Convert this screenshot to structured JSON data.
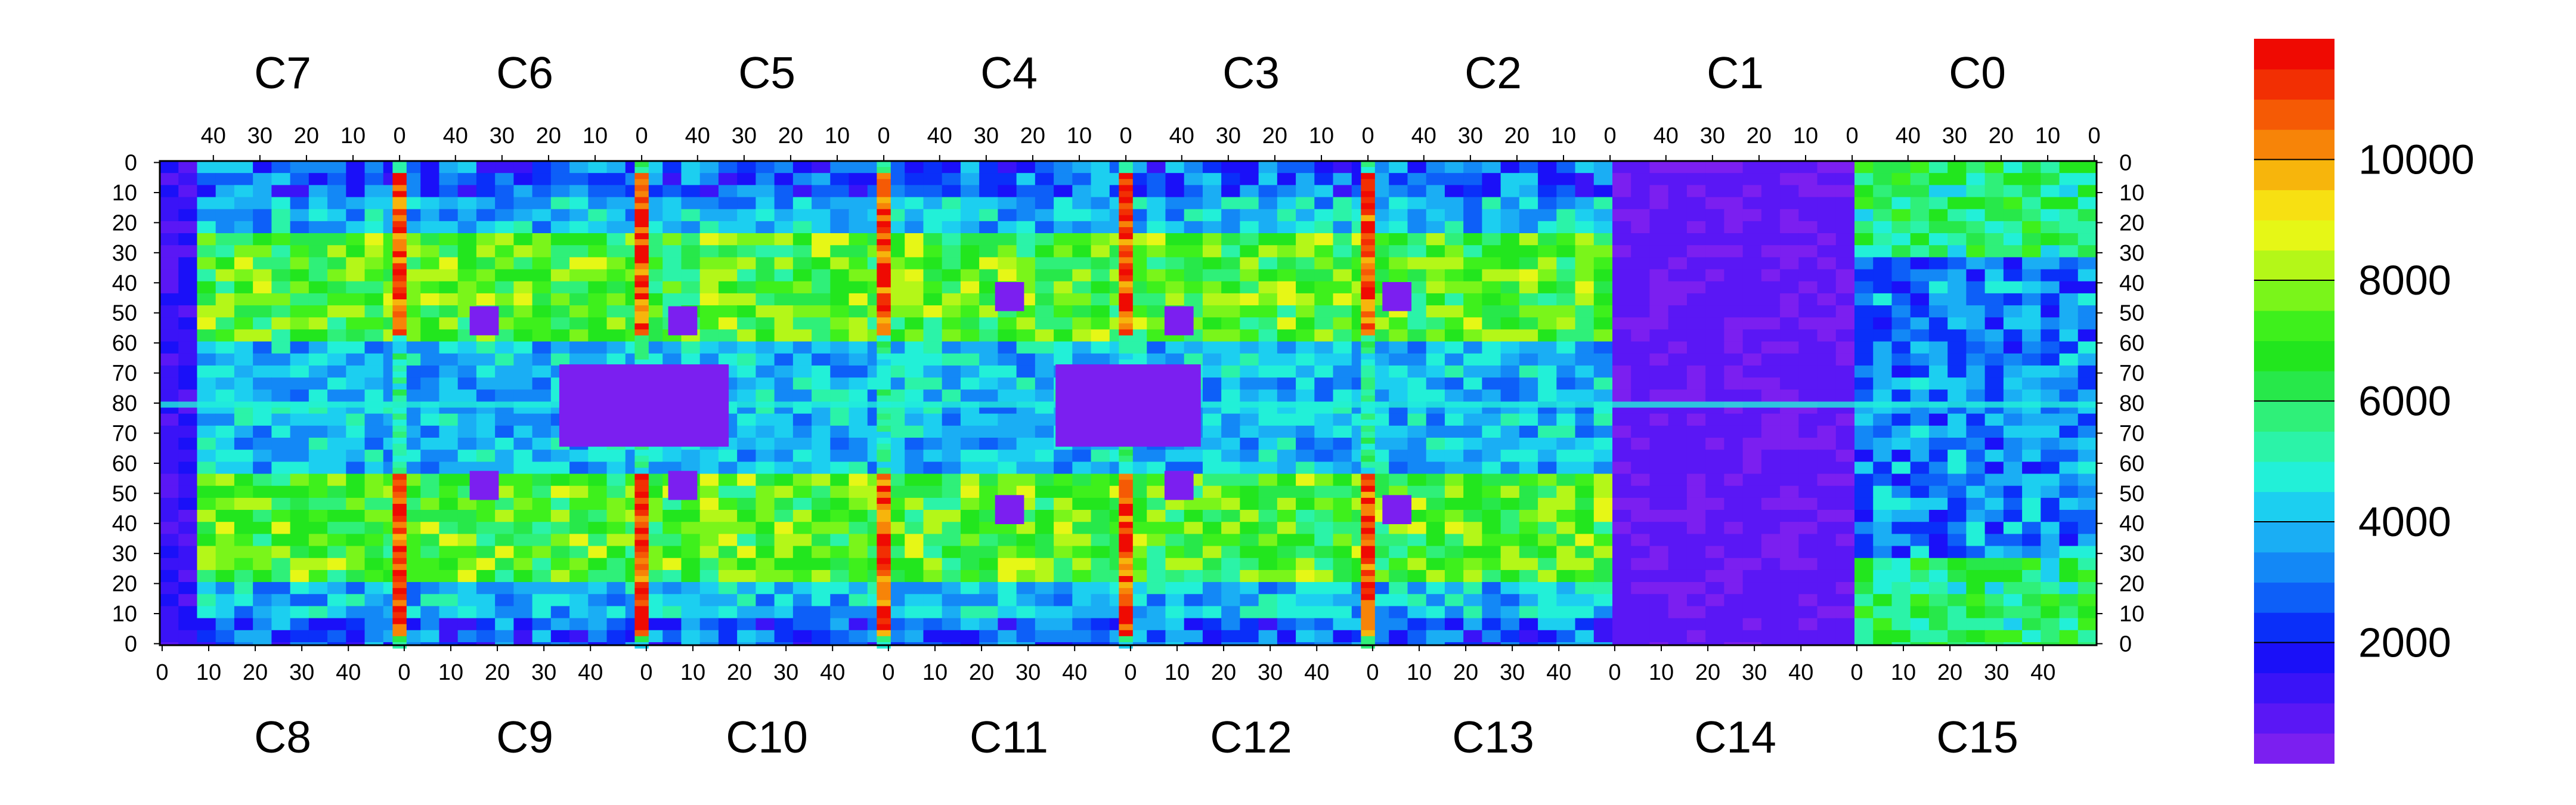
{
  "chart_data": {
    "type": "heatmap",
    "title": "",
    "xlabel": "",
    "ylabel": "",
    "grid": false,
    "chips_top": [
      "C7",
      "C6",
      "C5",
      "C4",
      "C3",
      "C2",
      "C1",
      "C0"
    ],
    "chips_bottom": [
      "C8",
      "C9",
      "C10",
      "C11",
      "C12",
      "C13",
      "C14",
      "C15"
    ],
    "columns_per_chip": 52,
    "rows_per_half": 80,
    "top_x_ticks": [
      "40",
      "30",
      "20",
      "10",
      "0"
    ],
    "bottom_x_ticks": [
      "0",
      "10",
      "20",
      "30",
      "40"
    ],
    "y_ticks_top": [
      "0",
      "10",
      "20",
      "30",
      "40",
      "50",
      "60",
      "70",
      "80"
    ],
    "y_ticks_bottom": [
      "70",
      "60",
      "50",
      "40",
      "30",
      "20",
      "10",
      "0"
    ],
    "colorbar": {
      "min": 0,
      "max": 12000,
      "ticks": [
        "2000",
        "4000",
        "6000",
        "8000",
        "10000"
      ],
      "colors": [
        "#7b1ff0",
        "#5a17f5",
        "#3a13f7",
        "#1a10f8",
        "#0a2ff9",
        "#0d5ff8",
        "#1388f6",
        "#1aaef4",
        "#1ccff0",
        "#22f0d8",
        "#2bf3a8",
        "#2ff079",
        "#27e84a",
        "#22e61e",
        "#3ef01c",
        "#7af51a",
        "#b4f718",
        "#e6f716",
        "#f7e012",
        "#f7b50c",
        "#f78408",
        "#f55a05",
        "#f22f03",
        "#ef0a02"
      ]
    }
  }
}
